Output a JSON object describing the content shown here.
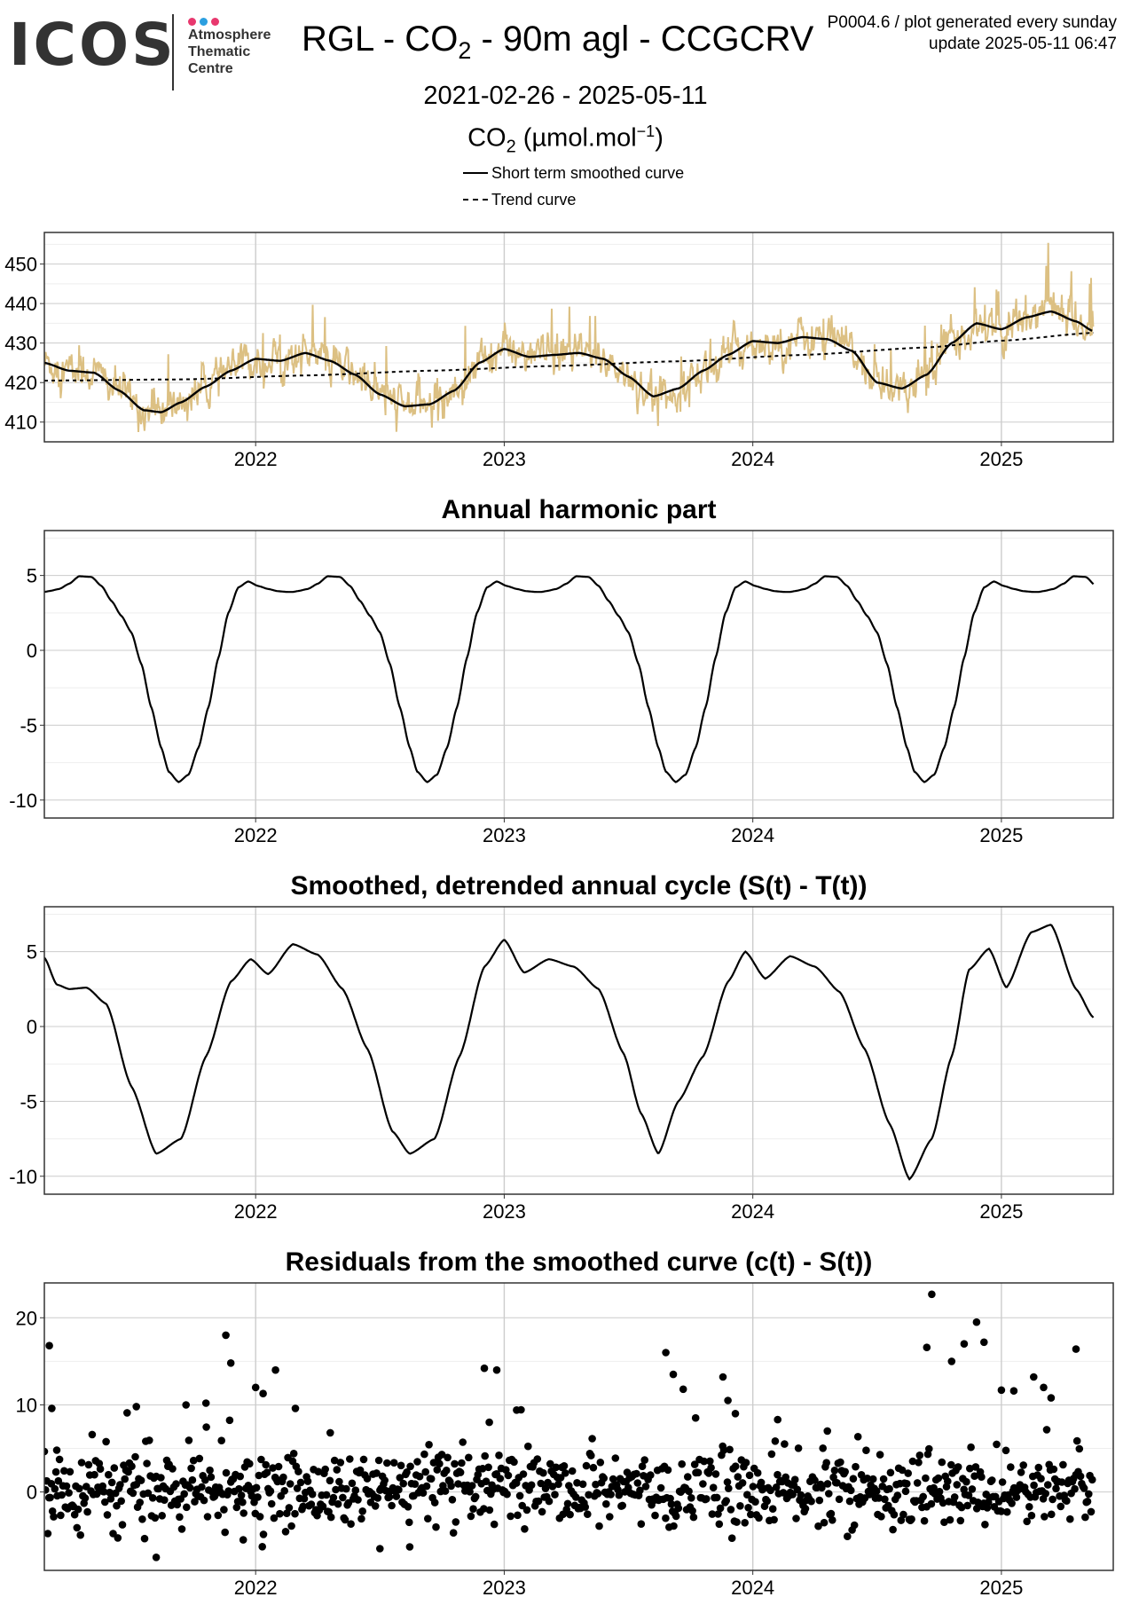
{
  "header": {
    "logo_word": "ICOS",
    "logo_sub": [
      "Atmosphere",
      "Thematic",
      "Centre"
    ],
    "logo_dot_colors": [
      "#e8386e",
      "#2b9fe0",
      "#e8386e"
    ],
    "title_main": "RGL - CO",
    "title_sub": "2",
    "title_rest": " - 90m agl - CCGCRV",
    "meta_line1": "P0004.6 / plot generated every sunday",
    "meta_line2": "update  2025-05-11 06:47",
    "date_range": "2021-02-26 - 2025-05-11",
    "unit_main": "CO",
    "unit_sub": "2",
    "unit_rest": " (µmol.mol",
    "unit_sup": "−1",
    "unit_close": ")"
  },
  "legend": {
    "items": [
      {
        "label": "Short term smoothed curve",
        "style": "solid"
      },
      {
        "label": "Trend curve",
        "style": "dashed"
      }
    ]
  },
  "colors": {
    "raw_series": "#dcc083",
    "curve": "#000000",
    "grid_major": "#cccccc",
    "grid_minor": "#eeeeee"
  },
  "chart_data": [
    {
      "type": "line",
      "title": "",
      "xlim": [
        2021.15,
        2025.45
      ],
      "ylim": [
        405,
        458
      ],
      "yticks": [
        410,
        420,
        430,
        440,
        450
      ],
      "xticks": [
        2022,
        2023,
        2024,
        2025
      ],
      "xtick_labels": [
        "2022",
        "2023",
        "2024",
        "2025"
      ],
      "series": [
        {
          "name": "Short term smoothed curve",
          "style": "solid",
          "x": [
            2021.15,
            2021.25,
            2021.35,
            2021.45,
            2021.55,
            2021.62,
            2021.7,
            2021.8,
            2021.9,
            2022.0,
            2022.1,
            2022.2,
            2022.3,
            2022.4,
            2022.5,
            2022.6,
            2022.7,
            2022.8,
            2022.9,
            2023.0,
            2023.1,
            2023.2,
            2023.3,
            2023.4,
            2023.5,
            2023.6,
            2023.7,
            2023.8,
            2023.9,
            2024.0,
            2024.1,
            2024.2,
            2024.3,
            2024.4,
            2024.5,
            2024.6,
            2024.7,
            2024.8,
            2024.9,
            2025.0,
            2025.1,
            2025.2,
            2025.3,
            2025.37
          ],
          "y": [
            425,
            423,
            422.5,
            418,
            413,
            412.5,
            415,
            419,
            423,
            426,
            425.5,
            427.5,
            425.5,
            422,
            417,
            414,
            414.5,
            418,
            425,
            428.5,
            426.5,
            427,
            427.5,
            426,
            421.5,
            416.5,
            418.5,
            423,
            427,
            430.5,
            430,
            431.5,
            431,
            428,
            420,
            418.5,
            422,
            430,
            435,
            433.5,
            436.5,
            438,
            435.5,
            433
          ]
        },
        {
          "name": "Trend curve",
          "style": "dashed",
          "x": [
            2021.15,
            2021.7,
            2022.2,
            2022.7,
            2023.2,
            2023.7,
            2024.2,
            2024.7,
            2025.0,
            2025.37
          ],
          "y": [
            420.5,
            420.8,
            421.8,
            423,
            424.2,
            425.4,
            427,
            428.9,
            430.6,
            432.6
          ]
        }
      ]
    },
    {
      "type": "line",
      "title": "Annual harmonic part",
      "xlim": [
        2021.15,
        2025.45
      ],
      "ylim": [
        -11.2,
        8
      ],
      "yticks": [
        -10,
        -5,
        0,
        5
      ],
      "xticks": [
        2022,
        2023,
        2024,
        2025
      ],
      "xtick_labels": [
        "2022",
        "2023",
        "2024",
        "2025"
      ],
      "series": [
        {
          "name": "Annual harmonic part",
          "x": [
            0,
            0.02,
            0.06,
            0.1,
            0.14,
            0.19,
            0.23,
            0.27,
            0.31,
            0.35,
            0.39,
            0.43,
            0.47,
            0.5,
            0.54,
            0.58,
            0.62,
            0.66,
            0.7,
            0.74,
            0.78,
            0.82,
            0.86,
            0.9,
            0.94,
            0.98,
            1.0
          ],
          "y": [
            3.9,
            3.96,
            4.1,
            4.45,
            4.95,
            4.9,
            4.3,
            3.3,
            2.3,
            1.2,
            -0.9,
            -3.8,
            -6.5,
            -8.1,
            -8.8,
            -8.3,
            -6.5,
            -3.8,
            -0.5,
            2.5,
            4.2,
            4.6,
            4.3,
            4.1,
            3.95,
            3.9,
            3.9
          ],
          "periodic": true,
          "x_start": 2021.15,
          "x_end": 2025.37
        }
      ]
    },
    {
      "type": "line",
      "title": "Smoothed, detrended annual cycle (S(t) - T(t))",
      "xlim": [
        2021.15,
        2025.45
      ],
      "ylim": [
        -11.2,
        8
      ],
      "yticks": [
        -10,
        -5,
        0,
        5
      ],
      "xticks": [
        2022,
        2023,
        2024,
        2025
      ],
      "xtick_labels": [
        "2022",
        "2023",
        "2024",
        "2025"
      ],
      "series": [
        {
          "name": "Smoothed, detrended annual cycle",
          "x": [
            2021.15,
            2021.2,
            2021.25,
            2021.32,
            2021.4,
            2021.5,
            2021.6,
            2021.7,
            2021.8,
            2021.9,
            2021.98,
            2022.05,
            2022.15,
            2022.25,
            2022.35,
            2022.45,
            2022.55,
            2022.62,
            2022.72,
            2022.82,
            2022.92,
            2023.0,
            2023.08,
            2023.18,
            2023.28,
            2023.38,
            2023.48,
            2023.55,
            2023.62,
            2023.7,
            2023.8,
            2023.9,
            2023.97,
            2024.05,
            2024.15,
            2024.25,
            2024.35,
            2024.45,
            2024.55,
            2024.63,
            2024.72,
            2024.8,
            2024.87,
            2024.95,
            2025.02,
            2025.12,
            2025.2,
            2025.3,
            2025.37
          ],
          "y": [
            4.6,
            2.8,
            2.5,
            2.6,
            1.5,
            -4,
            -8.5,
            -7.5,
            -2,
            3,
            4.5,
            3.5,
            5.5,
            4.8,
            2.5,
            -1.5,
            -7,
            -8.5,
            -7.5,
            -2,
            4,
            5.8,
            3.6,
            4.5,
            4.0,
            2.5,
            -1.8,
            -5.8,
            -8.5,
            -5,
            -2,
            3,
            5,
            3.2,
            4.7,
            4.0,
            2.3,
            -1.5,
            -6.5,
            -10.2,
            -7.5,
            -2,
            3.8,
            5.2,
            2.6,
            6.3,
            6.8,
            2.5,
            0.6
          ]
        }
      ]
    },
    {
      "type": "scatter",
      "title": "Residuals from the smoothed curve (c(t) - S(t))",
      "xlim": [
        2021.15,
        2025.45
      ],
      "ylim": [
        -9,
        24
      ],
      "yticks": [
        0,
        10,
        20
      ],
      "xticks": [
        2022,
        2023,
        2024,
        2025
      ],
      "xtick_labels": [
        "2022",
        "2023",
        "2024",
        "2025"
      ],
      "series": [
        {
          "name": "Residuals",
          "outliers_x": [
            2021.17,
            2021.18,
            2021.2,
            2021.52,
            2021.6,
            2021.72,
            2021.8,
            2021.88,
            2021.9,
            2021.95,
            2022.0,
            2022.03,
            2022.08,
            2022.16,
            2022.3,
            2022.5,
            2022.62,
            2022.92,
            2022.94,
            2022.97,
            2023.05,
            2023.65,
            2023.68,
            2023.72,
            2023.77,
            2023.88,
            2023.9,
            2023.93,
            2024.1,
            2024.3,
            2024.7,
            2024.72,
            2024.8,
            2024.85,
            2024.9,
            2024.93,
            2025.0,
            2025.05,
            2025.13,
            2025.17,
            2025.2,
            2025.3
          ],
          "outliers_y": [
            16.8,
            9.6,
            4.8,
            9.8,
            -7.5,
            10,
            10.2,
            18,
            14.8,
            -5.5,
            12,
            11.3,
            14,
            9.6,
            6.8,
            -6.5,
            -6.3,
            14.2,
            8,
            14,
            9.4,
            16,
            13.5,
            11.8,
            8.5,
            13.2,
            10.5,
            9,
            8.3,
            7,
            16.6,
            22.7,
            15,
            17,
            19.5,
            17.2,
            11.7,
            11.6,
            13.2,
            12,
            10.8,
            16.4
          ],
          "base_std": 2.0,
          "count": 900,
          "x_start": 2021.15,
          "x_end": 2025.37
        }
      ]
    }
  ]
}
